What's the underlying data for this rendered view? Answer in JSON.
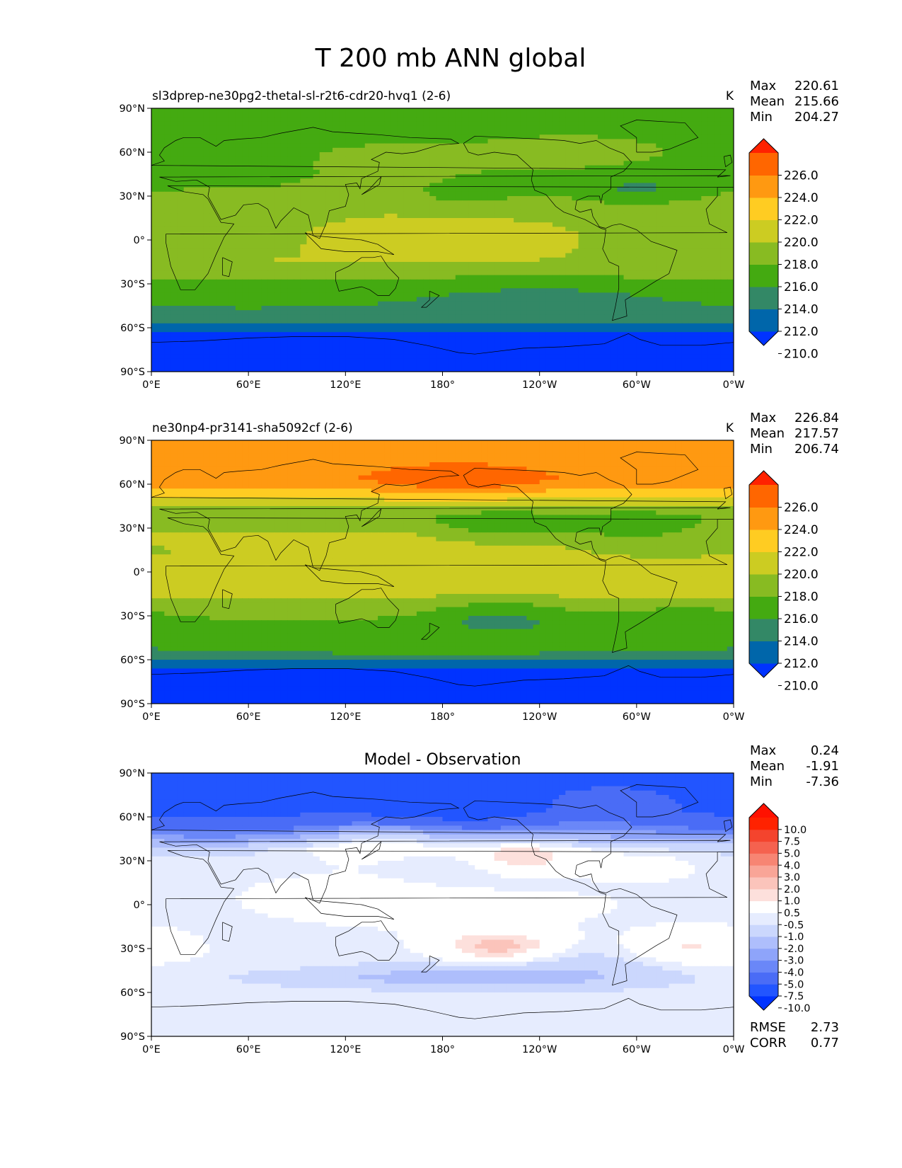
{
  "figure": {
    "title": "T 200 mb ANN global"
  },
  "chart_data": [
    {
      "type": "heatmap",
      "map_projection": "plate-carree",
      "title": "sl3dprep-ne30pg2-thetal-sl-r2t6-cdr20-hvq1 (2-6)",
      "units": "K",
      "stats": [
        {
          "label": "Max",
          "value": "220.61"
        },
        {
          "label": "Mean",
          "value": "215.66"
        },
        {
          "label": "Min",
          "value": "204.27"
        }
      ],
      "xticks": [
        "0°E",
        "60°E",
        "120°E",
        "180°",
        "120°W",
        "60°W",
        "0°W"
      ],
      "yticks": [
        "90°N",
        "60°N",
        "30°N",
        "0°",
        "30°S",
        "60°S",
        "90°S"
      ],
      "xlim": [
        0,
        360
      ],
      "ylim": [
        -90,
        90
      ],
      "colorbar": {
        "levels": [
          208,
          210,
          212,
          214,
          216,
          218,
          220,
          222,
          224,
          226,
          228
        ],
        "labels": [
          "226.0",
          "224.0",
          "222.0",
          "220.0",
          "218.0",
          "216.0",
          "214.0",
          "212.0",
          "210.0"
        ],
        "colors": [
          "#0033ff",
          "#0066aa",
          "#338866",
          "#44aa11",
          "#88bb22",
          "#cccc22",
          "#ffcc22",
          "#ff9911",
          "#ff6600",
          "#ff2200"
        ],
        "extend": "both"
      },
      "field": "test"
    },
    {
      "type": "heatmap",
      "map_projection": "plate-carree",
      "title": "ne30np4-pr3141-sha5092cf (2-6)",
      "units": "K",
      "stats": [
        {
          "label": "Max",
          "value": "226.84"
        },
        {
          "label": "Mean",
          "value": "217.57"
        },
        {
          "label": "Min",
          "value": "206.74"
        }
      ],
      "xticks": [
        "0°E",
        "60°E",
        "120°E",
        "180°",
        "120°W",
        "60°W",
        "0°W"
      ],
      "yticks": [
        "90°N",
        "60°N",
        "30°N",
        "0°",
        "30°S",
        "60°S",
        "90°S"
      ],
      "xlim": [
        0,
        360
      ],
      "ylim": [
        -90,
        90
      ],
      "colorbar": {
        "levels": [
          208,
          210,
          212,
          214,
          216,
          218,
          220,
          222,
          224,
          226,
          228
        ],
        "labels": [
          "226.0",
          "224.0",
          "222.0",
          "220.0",
          "218.0",
          "216.0",
          "214.0",
          "212.0",
          "210.0"
        ],
        "colors": [
          "#0033ff",
          "#0066aa",
          "#338866",
          "#44aa11",
          "#88bb22",
          "#cccc22",
          "#ffcc22",
          "#ff9911",
          "#ff6600",
          "#ff2200"
        ],
        "extend": "both"
      },
      "field": "ref"
    },
    {
      "type": "heatmap",
      "map_projection": "plate-carree",
      "title": "Model - Observation",
      "units": "",
      "stats": [
        {
          "label": "Max",
          "value": "0.24"
        },
        {
          "label": "Mean",
          "value": "-1.91"
        },
        {
          "label": "Min",
          "value": "-7.36"
        }
      ],
      "extra_stats": [
        {
          "label": "RMSE",
          "value": "2.73"
        },
        {
          "label": "CORR",
          "value": "0.77"
        }
      ],
      "xticks": [
        "0°E",
        "60°E",
        "120°E",
        "180°",
        "120°W",
        "60°W",
        "0°W"
      ],
      "yticks": [
        "90°N",
        "60°N",
        "30°N",
        "0°",
        "30°S",
        "60°S",
        "90°S"
      ],
      "xlim": [
        0,
        360
      ],
      "ylim": [
        -90,
        90
      ],
      "colorbar": {
        "levels": [
          -12,
          -10,
          -7.5,
          -5,
          -4,
          -3,
          -2,
          -1,
          -0.5,
          0.5,
          1,
          2,
          3,
          4,
          5,
          7.5,
          10,
          12
        ],
        "labels": [
          "10.0",
          "7.5",
          "5.0",
          "4.0",
          "3.0",
          "2.0",
          "1.0",
          "0.5",
          "-0.5",
          "-1.0",
          "-2.0",
          "-3.0",
          "-4.0",
          "-5.0",
          "-7.5",
          "-10.0"
        ],
        "colors": [
          "#0033ff",
          "#2255ff",
          "#4a6cf6",
          "#6a87f8",
          "#8ea4fa",
          "#aebefc",
          "#cbd7fd",
          "#e6ecfe",
          "#ffffff",
          "#fde0dc",
          "#fbc4bb",
          "#f9a597",
          "#f78573",
          "#f5624f",
          "#f4442d",
          "#ff2200",
          "#ff1100"
        ],
        "extend": "both"
      },
      "field": "diff"
    }
  ]
}
